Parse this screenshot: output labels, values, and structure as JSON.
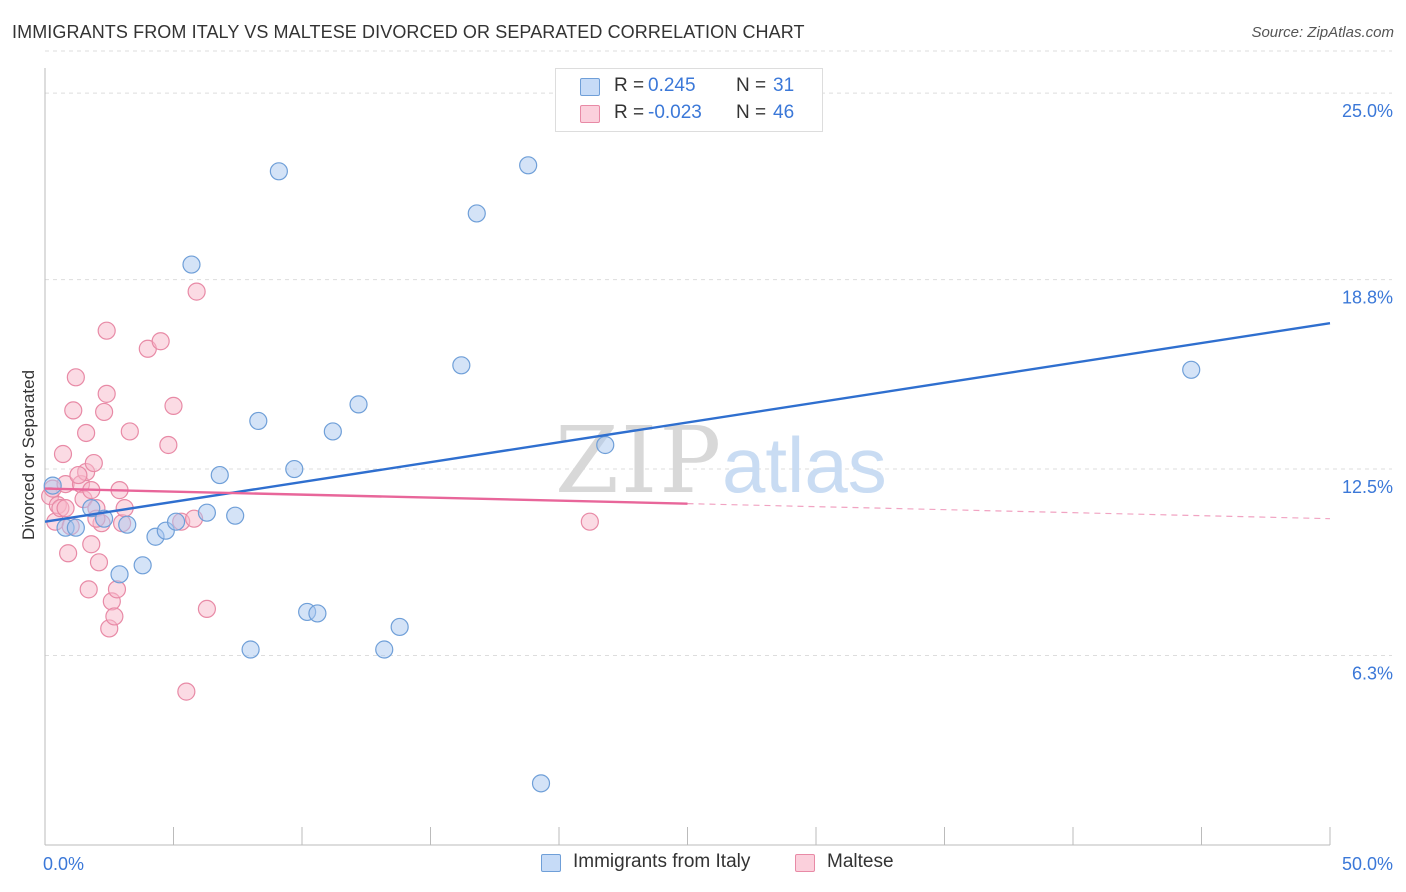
{
  "header": {
    "title": "IMMIGRANTS FROM ITALY VS MALTESE DIVORCED OR SEPARATED CORRELATION CHART",
    "source": "Source: ZipAtlas.com"
  },
  "watermark": {
    "zip": "ZIP",
    "atlas": "atlas"
  },
  "legend": {
    "r_label": "R =",
    "n_label": "N =",
    "series": [
      {
        "name": "Immigrants from Italy",
        "r": "0.245",
        "n": "31"
      },
      {
        "name": "Maltese",
        "r": "-0.023",
        "n": "46"
      }
    ]
  },
  "colors": {
    "blue_fill": "#a9c8f0",
    "blue_stroke": "#6f9fd8",
    "blue_line": "#2f6fcf",
    "pink_fill": "#f7b8c9",
    "pink_stroke": "#e88aa6",
    "pink_line": "#e8669a",
    "tick_label": "#3b78d8",
    "grid": "#dddddd"
  },
  "chart_data": {
    "type": "scatter",
    "title": "IMMIGRANTS FROM ITALY VS MALTESE DIVORCED OR SEPARATED CORRELATION CHART",
    "xlabel": "",
    "ylabel": "Divorced or Separated",
    "xlim": [
      0,
      50
    ],
    "ylim": [
      0,
      26.5
    ],
    "x_tick_labels": {
      "left": "0.0%",
      "right": "50.0%"
    },
    "y_ticks": [
      {
        "value": 6.3,
        "label": "6.3%"
      },
      {
        "value": 12.5,
        "label": "12.5%"
      },
      {
        "value": 18.8,
        "label": "18.8%"
      },
      {
        "value": 25.0,
        "label": "25.0%"
      }
    ],
    "grid": true,
    "series": [
      {
        "name": "Immigrants from Italy",
        "color_key": "blue",
        "trend": {
          "x0": 0,
          "y0": 10.75,
          "x1": 50,
          "y1": 17.35,
          "solid_to_x": 50
        },
        "points": [
          [
            0.3,
            11.95
          ],
          [
            0.8,
            10.55
          ],
          [
            1.2,
            10.55
          ],
          [
            1.8,
            11.2
          ],
          [
            2.3,
            10.85
          ],
          [
            2.9,
            9.0
          ],
          [
            3.2,
            10.65
          ],
          [
            3.8,
            9.3
          ],
          [
            4.3,
            10.25
          ],
          [
            4.7,
            10.45
          ],
          [
            5.1,
            10.75
          ],
          [
            5.7,
            19.3
          ],
          [
            6.3,
            11.05
          ],
          [
            6.8,
            12.3
          ],
          [
            7.4,
            10.95
          ],
          [
            8.0,
            6.5
          ],
          [
            8.3,
            14.1
          ],
          [
            9.1,
            22.4
          ],
          [
            9.7,
            12.5
          ],
          [
            10.2,
            7.75
          ],
          [
            10.6,
            7.7
          ],
          [
            11.2,
            13.75
          ],
          [
            12.2,
            14.65
          ],
          [
            13.2,
            6.5
          ],
          [
            13.8,
            7.25
          ],
          [
            16.2,
            15.95
          ],
          [
            16.8,
            21.0
          ],
          [
            18.8,
            22.6
          ],
          [
            19.3,
            2.05
          ],
          [
            21.8,
            13.3
          ],
          [
            44.6,
            15.8
          ]
        ]
      },
      {
        "name": "Maltese",
        "color_key": "pink",
        "trend": {
          "x0": 0,
          "y0": 11.85,
          "x1": 50,
          "y1": 10.85,
          "solid_to_x": 25
        },
        "points": [
          [
            0.2,
            11.6
          ],
          [
            0.3,
            11.85
          ],
          [
            0.4,
            10.75
          ],
          [
            0.5,
            11.3
          ],
          [
            0.6,
            11.2
          ],
          [
            0.7,
            13.0
          ],
          [
            0.8,
            11.2
          ],
          [
            0.8,
            12.0
          ],
          [
            0.9,
            9.7
          ],
          [
            1.0,
            10.6
          ],
          [
            1.1,
            14.45
          ],
          [
            1.2,
            15.55
          ],
          [
            1.4,
            12.0
          ],
          [
            1.5,
            11.5
          ],
          [
            1.6,
            12.4
          ],
          [
            1.6,
            13.7
          ],
          [
            1.7,
            8.5
          ],
          [
            1.8,
            11.8
          ],
          [
            1.8,
            10.0
          ],
          [
            1.9,
            12.7
          ],
          [
            2.0,
            11.2
          ],
          [
            2.1,
            9.4
          ],
          [
            2.2,
            10.7
          ],
          [
            2.3,
            14.4
          ],
          [
            2.4,
            15.0
          ],
          [
            2.4,
            17.1
          ],
          [
            2.5,
            7.2
          ],
          [
            2.6,
            8.1
          ],
          [
            2.7,
            7.6
          ],
          [
            2.8,
            8.5
          ],
          [
            2.9,
            11.8
          ],
          [
            2.0,
            10.85
          ],
          [
            3.3,
            13.75
          ],
          [
            3.0,
            10.7
          ],
          [
            3.1,
            11.2
          ],
          [
            4.0,
            16.5
          ],
          [
            4.5,
            16.75
          ],
          [
            4.8,
            13.3
          ],
          [
            5.0,
            14.6
          ],
          [
            5.3,
            10.75
          ],
          [
            5.5,
            5.1
          ],
          [
            5.8,
            10.85
          ],
          [
            5.9,
            18.4
          ],
          [
            6.3,
            7.85
          ],
          [
            21.2,
            10.75
          ],
          [
            1.3,
            12.3
          ]
        ]
      }
    ]
  }
}
